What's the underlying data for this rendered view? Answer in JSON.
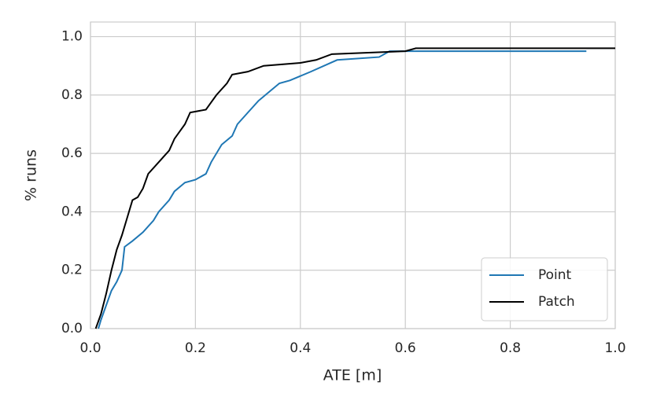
{
  "chart_data": {
    "type": "line",
    "x_label": "ATE [m]",
    "y_label": "% runs",
    "xlim": [
      0,
      1
    ],
    "ylim": [
      0,
      1.05
    ],
    "xticks": [
      {
        "value": 0,
        "label": "0.0"
      },
      {
        "value": 0.2,
        "label": "0.2"
      },
      {
        "value": 0.4,
        "label": "0.4"
      },
      {
        "value": 0.6,
        "label": "0.6"
      },
      {
        "value": 0.8,
        "label": "0.8"
      },
      {
        "value": 1,
        "label": "1.0"
      }
    ],
    "yticks": [
      {
        "value": 0,
        "label": "0.0"
      },
      {
        "value": 0.2,
        "label": "0.2"
      },
      {
        "value": 0.4,
        "label": "0.4"
      },
      {
        "value": 0.6,
        "label": "0.6"
      },
      {
        "value": 0.8,
        "label": "0.8"
      },
      {
        "value": 1,
        "label": "1.0"
      }
    ],
    "grid": true,
    "legend": "lower right",
    "series": [
      {
        "name": "Point",
        "color": "#1f77b4",
        "x": [
          0.015,
          0.02,
          0.03,
          0.04,
          0.05,
          0.06,
          0.065,
          0.08,
          0.1,
          0.12,
          0.13,
          0.15,
          0.16,
          0.18,
          0.2,
          0.22,
          0.23,
          0.25,
          0.27,
          0.28,
          0.3,
          0.32,
          0.34,
          0.36,
          0.38,
          0.42,
          0.47,
          0.55,
          0.57,
          0.945
        ],
        "values": [
          0.0,
          0.03,
          0.08,
          0.13,
          0.16,
          0.2,
          0.28,
          0.3,
          0.33,
          0.37,
          0.4,
          0.44,
          0.47,
          0.5,
          0.51,
          0.53,
          0.57,
          0.63,
          0.66,
          0.7,
          0.74,
          0.78,
          0.81,
          0.84,
          0.85,
          0.88,
          0.92,
          0.93,
          0.95,
          0.95
        ]
      },
      {
        "name": "Patch",
        "color": "#000000",
        "x": [
          0.01,
          0.02,
          0.03,
          0.04,
          0.05,
          0.06,
          0.07,
          0.08,
          0.09,
          0.1,
          0.11,
          0.13,
          0.15,
          0.16,
          0.18,
          0.19,
          0.22,
          0.24,
          0.26,
          0.27,
          0.3,
          0.33,
          0.4,
          0.43,
          0.46,
          0.6,
          0.62,
          1.0
        ],
        "values": [
          0.0,
          0.05,
          0.12,
          0.2,
          0.27,
          0.32,
          0.38,
          0.44,
          0.45,
          0.48,
          0.53,
          0.57,
          0.61,
          0.65,
          0.7,
          0.74,
          0.75,
          0.8,
          0.84,
          0.87,
          0.88,
          0.9,
          0.91,
          0.92,
          0.94,
          0.95,
          0.96,
          0.96
        ]
      }
    ]
  }
}
